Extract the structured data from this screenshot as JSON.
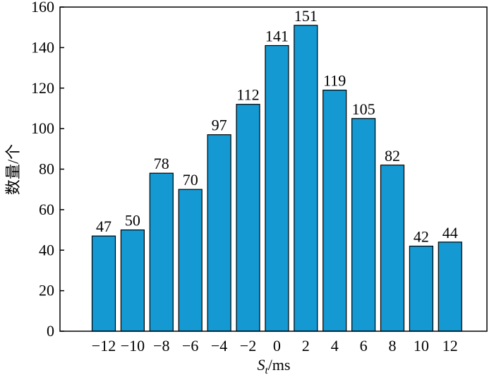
{
  "chart_data": {
    "type": "bar",
    "ylabel": "数量/个",
    "xlabel": {
      "symbol": "S",
      "subscript": "t",
      "unit": "/ms"
    },
    "categories": [
      "−12",
      "−10",
      "−8",
      "−6",
      "−4",
      "−2",
      "0",
      "2",
      "4",
      "6",
      "8",
      "10",
      "12"
    ],
    "values": [
      47,
      50,
      78,
      70,
      97,
      112,
      141,
      151,
      119,
      105,
      82,
      42,
      44
    ],
    "color": "#1499d3",
    "ylim": [
      0,
      160
    ],
    "yticks": [
      0,
      20,
      40,
      60,
      80,
      100,
      120,
      140,
      160
    ],
    "grid": false
  }
}
